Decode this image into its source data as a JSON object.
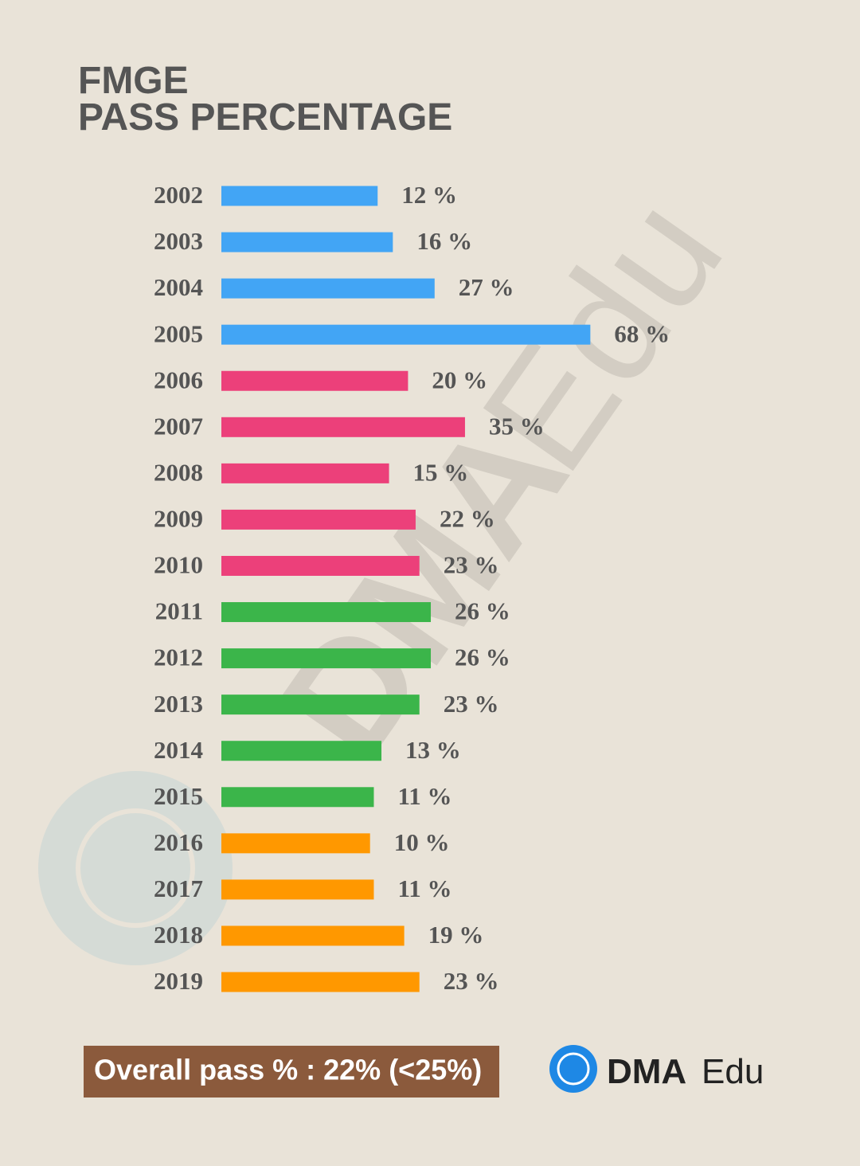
{
  "chart_data": {
    "type": "bar",
    "orientation": "horizontal",
    "title": [
      "FMGE",
      "PASS PERCENTAGE"
    ],
    "categories": [
      "2002",
      "2003",
      "2004",
      "2005",
      "2006",
      "2007",
      "2008",
      "2009",
      "2010",
      "2011",
      "2012",
      "2013",
      "2014",
      "2015",
      "2016",
      "2017",
      "2018",
      "2019"
    ],
    "values": [
      12,
      16,
      27,
      68,
      20,
      35,
      15,
      22,
      23,
      26,
      26,
      23,
      13,
      11,
      10,
      11,
      19,
      23
    ],
    "value_labels": [
      "12 %",
      "16 %",
      "27 %",
      "68 %",
      "20 %",
      "35 %",
      "15 %",
      "22 %",
      "23 %",
      "26 %",
      "26 %",
      "23 %",
      "13 %",
      "11 %",
      "10 %",
      "11 %",
      "19 %",
      "23 %"
    ],
    "colors": [
      "#42a5f5",
      "#42a5f5",
      "#42a5f5",
      "#42a5f5",
      "#ec407a",
      "#ec407a",
      "#ec407a",
      "#ec407a",
      "#ec407a",
      "#3bb54a",
      "#3bb54a",
      "#3bb54a",
      "#3bb54a",
      "#3bb54a",
      "#ff9800",
      "#ff9800",
      "#ff9800",
      "#ff9800"
    ],
    "annotation": "Overall pass % :  22% (<25%)",
    "logo": {
      "bold": "DMA",
      "light": "Edu"
    }
  }
}
